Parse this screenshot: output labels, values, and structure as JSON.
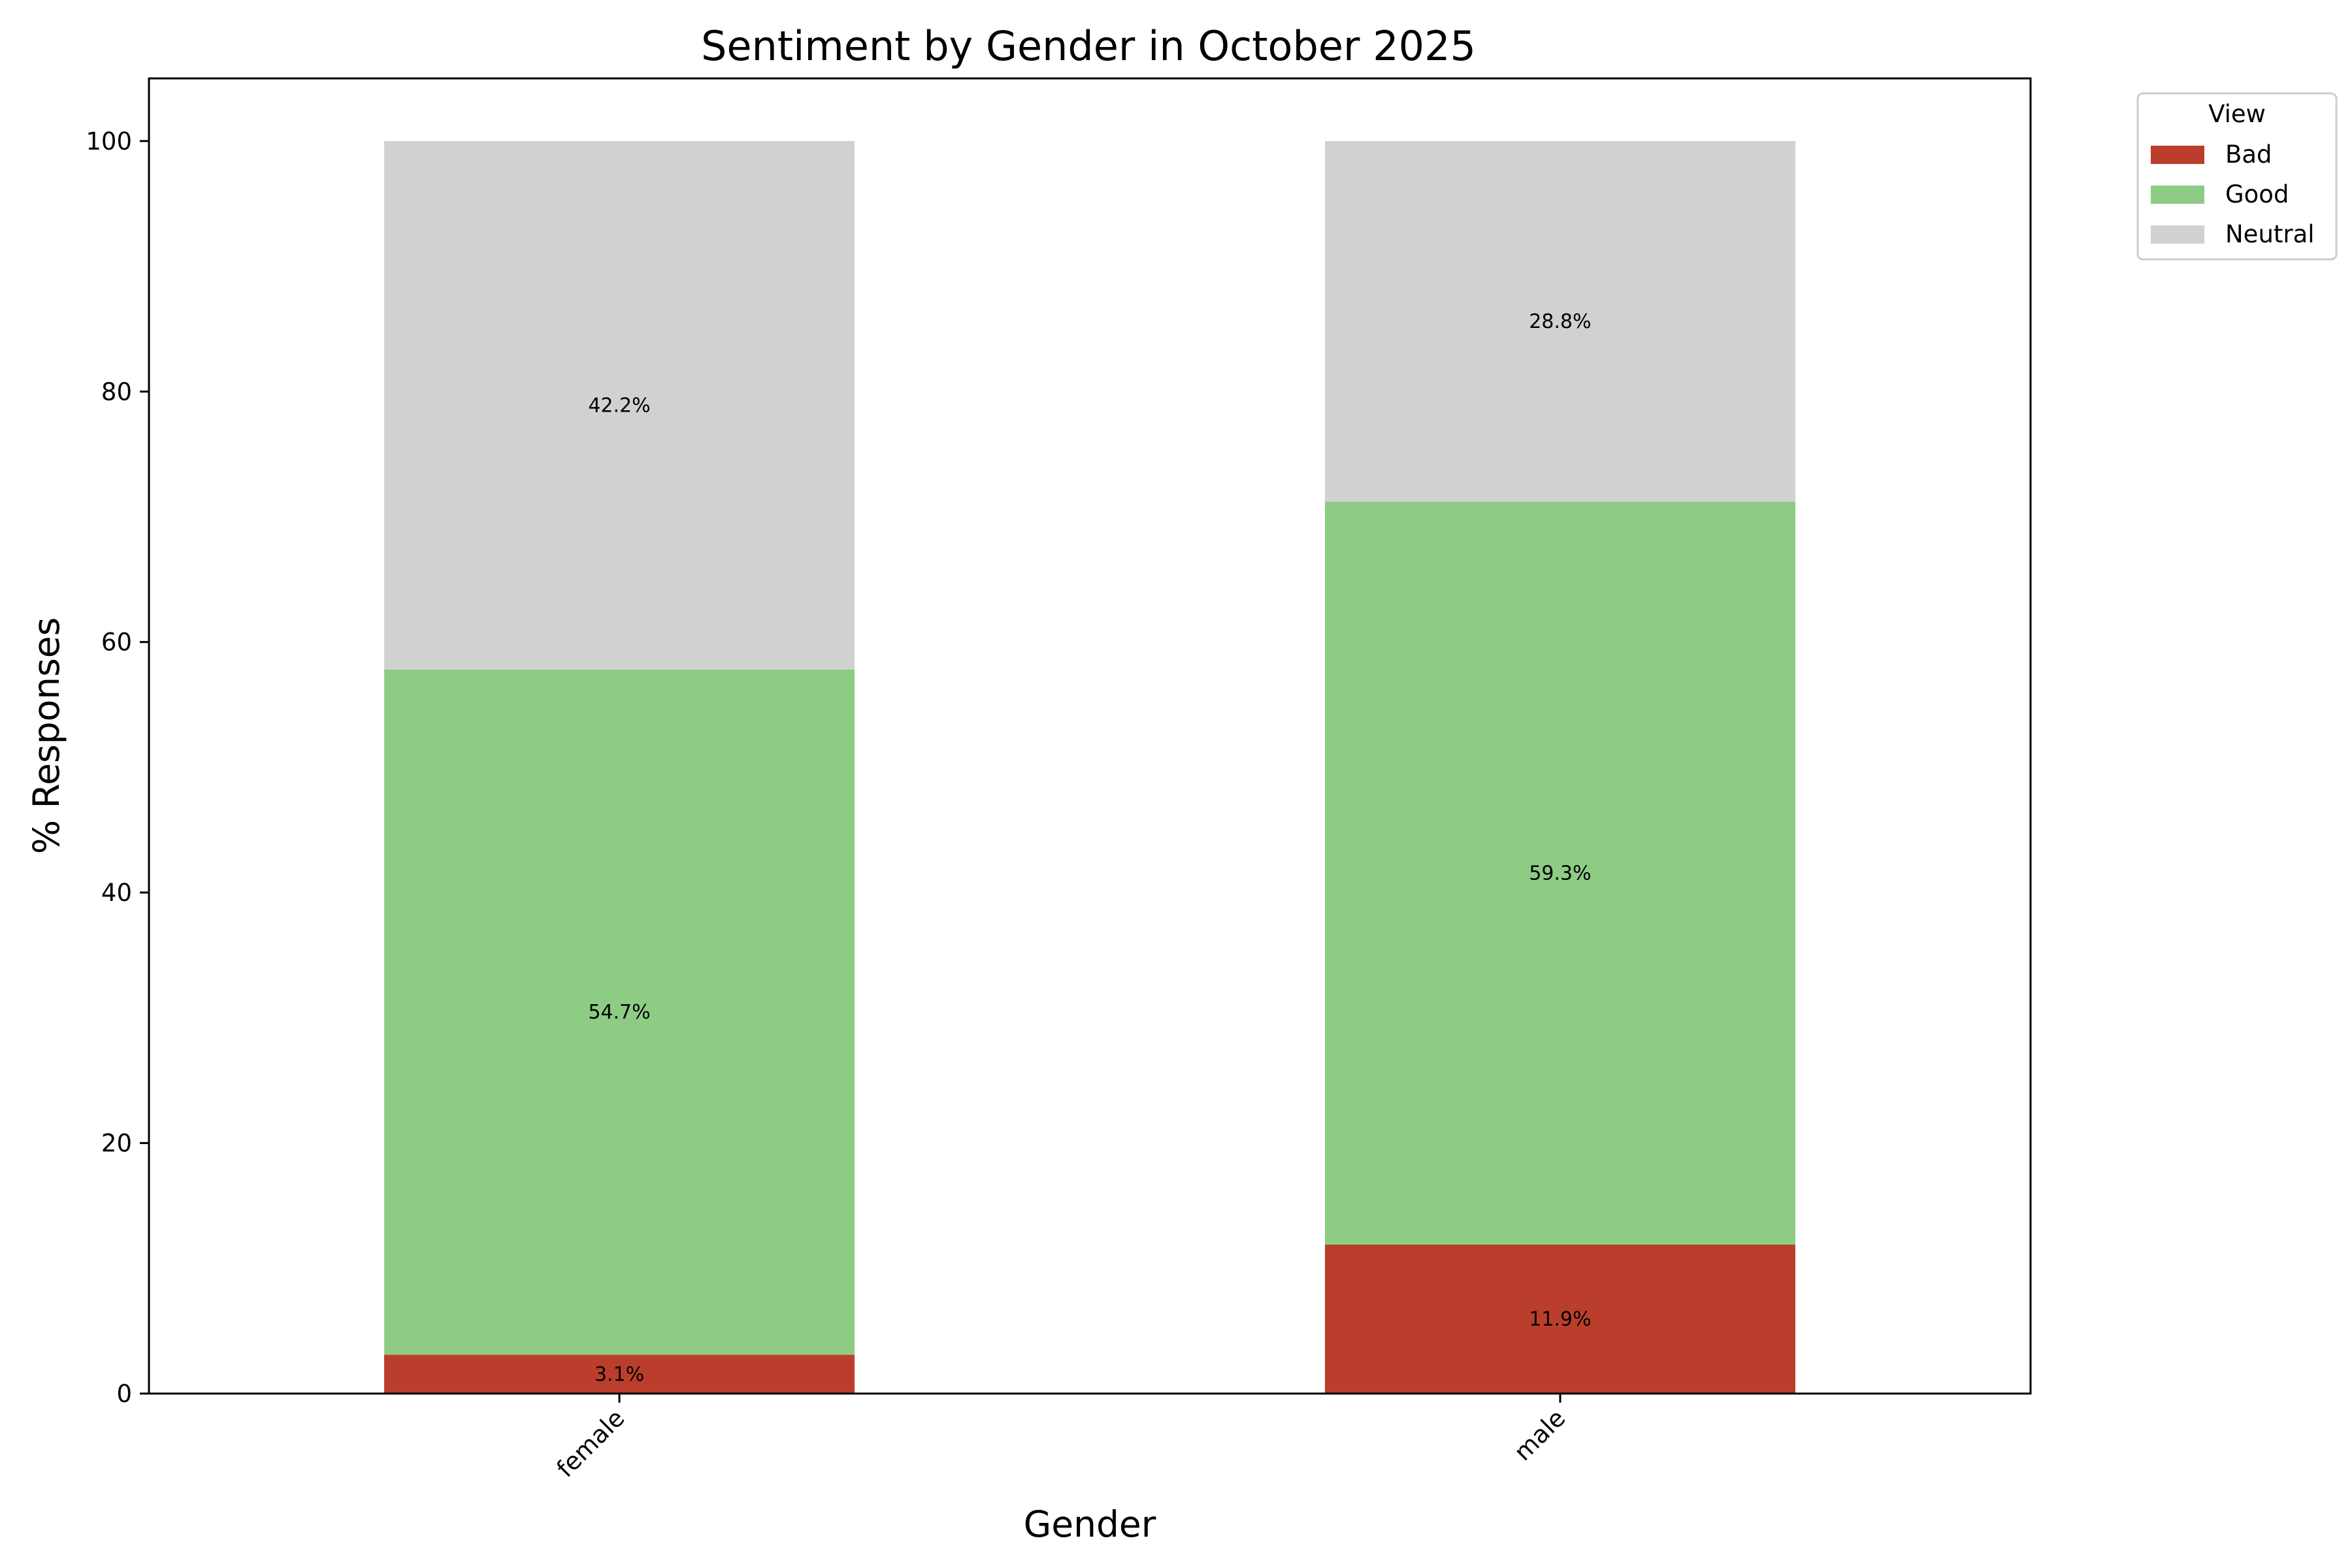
{
  "chart_data": {
    "type": "bar",
    "stacked": true,
    "title": "Sentiment by Gender in October 2025",
    "xlabel": "Gender",
    "ylabel": "% Responses",
    "categories": [
      "female",
      "male"
    ],
    "series": [
      {
        "name": "Bad",
        "color": "#bb3e2c",
        "values": [
          3.1,
          11.9
        ],
        "labels": [
          "3.1%",
          "11.9%"
        ]
      },
      {
        "name": "Good",
        "color": "#8ecc86",
        "values": [
          54.7,
          59.3
        ],
        "labels": [
          "54.7%",
          "59.3%"
        ]
      },
      {
        "name": "Neutral",
        "color": "#d2d1d1",
        "values": [
          42.2,
          28.8
        ],
        "labels": [
          "42.2%",
          "28.8%"
        ]
      }
    ],
    "ylim": [
      0,
      105
    ],
    "yticks": [
      0,
      20,
      40,
      60,
      80,
      100
    ],
    "legend": {
      "title": "View",
      "placement": "outside-top-right"
    },
    "grid": false
  }
}
